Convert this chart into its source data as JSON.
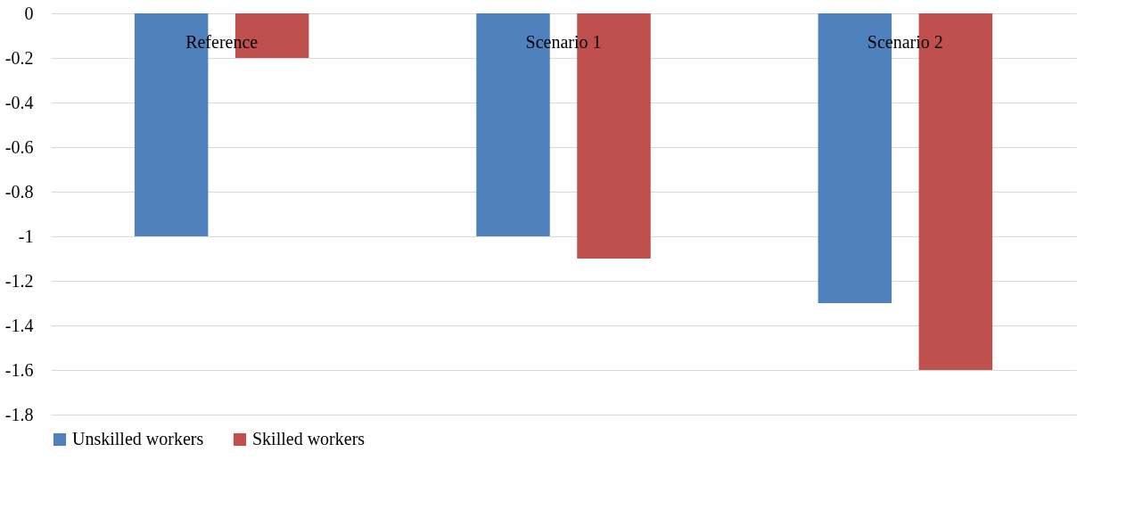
{
  "chart_data": {
    "type": "bar",
    "categories": [
      "Reference",
      "Scenario 1",
      "Scenario 2"
    ],
    "series": [
      {
        "name": "Unskilled workers",
        "color": "#4f81bd",
        "values": [
          -1,
          -1,
          -1.3
        ]
      },
      {
        "name": "Skilled workers",
        "color": "#c0504d",
        "values": [
          -0.2,
          -1.1,
          -1.6
        ]
      }
    ],
    "ylim": [
      -1.8,
      0
    ],
    "yticks": [
      0,
      -0.2,
      -0.4,
      -0.6,
      -0.8,
      -1,
      -1.2,
      -1.4,
      -1.6,
      -1.8
    ],
    "grid": "y",
    "legend": "bottom"
  }
}
